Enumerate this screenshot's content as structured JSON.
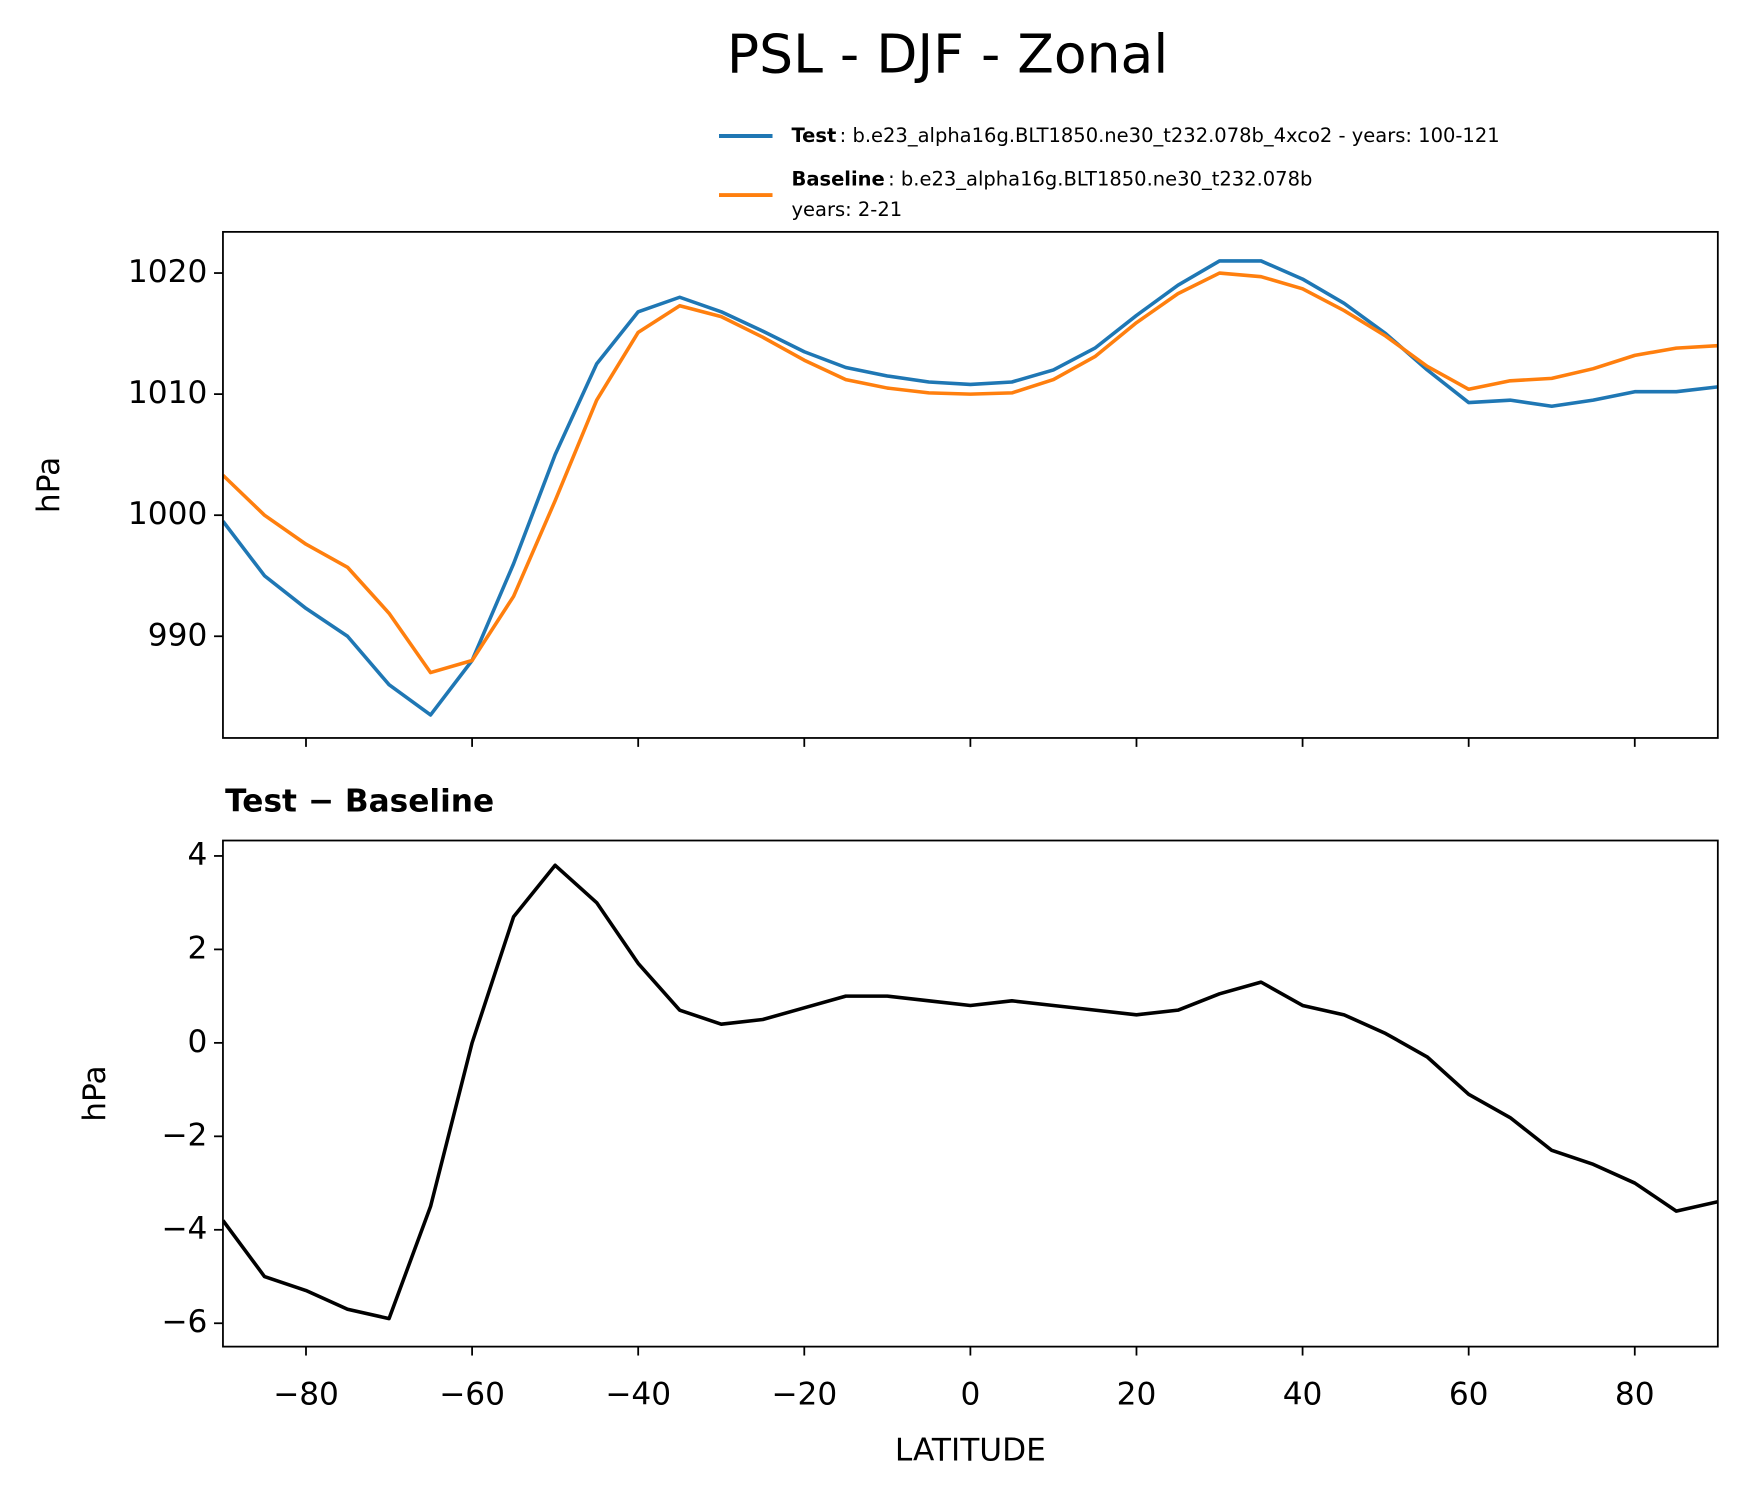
{
  "chart_data": [
    {
      "type": "line",
      "title": "PSL - DJF - Zonal",
      "ylabel": "hPa",
      "x": [
        -90,
        -85,
        -80,
        -75,
        -70,
        -65,
        -60,
        -55,
        -50,
        -45,
        -40,
        -35,
        -30,
        -25,
        -20,
        -15,
        -10,
        -5,
        0,
        5,
        10,
        15,
        20,
        25,
        30,
        35,
        40,
        45,
        50,
        55,
        60,
        65,
        70,
        75,
        80,
        85,
        90
      ],
      "series": [
        {
          "name": "Test",
          "description": [
            ": b.e23_alpha16g.BLT1850.ne30_t232.078b_4xco2 - years: 100-121"
          ],
          "color": "#1f77b4",
          "values": [
            999.5,
            995.0,
            992.3,
            990.0,
            986.0,
            983.5,
            988.0,
            996.0,
            1005.0,
            1012.5,
            1016.8,
            1018.0,
            1016.8,
            1015.2,
            1013.5,
            1012.2,
            1011.5,
            1011.0,
            1010.8,
            1011.0,
            1012.0,
            1013.8,
            1016.5,
            1019.0,
            1021.0,
            1021.0,
            1019.5,
            1017.5,
            1015.0,
            1012.0,
            1009.3,
            1009.5,
            1009.0,
            1009.5,
            1010.2,
            1010.2,
            1010.6
          ]
        },
        {
          "name": "Baseline",
          "description": [
            ": b.e23_alpha16g.BLT1850.ne30_t232.078b",
            "years: 2-21"
          ],
          "color": "#ff7f0e",
          "values": [
            1003.3,
            1000.0,
            997.6,
            995.7,
            991.9,
            987.0,
            988.0,
            993.3,
            1001.2,
            1009.5,
            1015.1,
            1017.3,
            1016.4,
            1014.7,
            1012.8,
            1011.2,
            1010.5,
            1010.1,
            1010.0,
            1010.1,
            1011.2,
            1013.1,
            1015.9,
            1018.3,
            1020.0,
            1019.7,
            1018.7,
            1016.9,
            1014.8,
            1012.3,
            1010.4,
            1011.1,
            1011.3,
            1012.1,
            1013.2,
            1013.8,
            1014.0
          ]
        }
      ],
      "xlim": [
        -90,
        90
      ],
      "xticks": [
        -80,
        -60,
        -40,
        -20,
        0,
        20,
        40,
        60,
        80
      ],
      "ylim": [
        981.6,
        1023.4
      ],
      "yticks": [
        990,
        1000,
        1010,
        1020
      ]
    },
    {
      "type": "line",
      "title": "Test − Baseline",
      "xlabel": "LATITUDE",
      "ylabel": "hPa",
      "x": [
        -90,
        -85,
        -80,
        -75,
        -70,
        -65,
        -60,
        -55,
        -50,
        -45,
        -40,
        -35,
        -30,
        -25,
        -20,
        -15,
        -10,
        -5,
        0,
        5,
        10,
        15,
        20,
        25,
        30,
        35,
        40,
        45,
        50,
        55,
        60,
        65,
        70,
        75,
        80,
        85,
        90
      ],
      "series": [
        {
          "color": "#000000",
          "values": [
            -3.8,
            -5.0,
            -5.3,
            -5.7,
            -5.9,
            -3.5,
            0.0,
            2.7,
            3.8,
            3.0,
            1.7,
            0.7,
            0.4,
            0.5,
            0.75,
            1.0,
            1.0,
            0.9,
            0.8,
            0.9,
            0.8,
            0.7,
            0.6,
            0.7,
            1.05,
            1.3,
            0.8,
            0.6,
            0.2,
            -0.3,
            -1.1,
            -1.6,
            -2.3,
            -2.6,
            -3.0,
            -3.6,
            -3.4
          ]
        }
      ],
      "xlim": [
        -90,
        90
      ],
      "xticks": [
        {
          "value": -80,
          "label": "−80"
        },
        {
          "value": -60,
          "label": "−60"
        },
        {
          "value": -40,
          "label": "−40"
        },
        {
          "value": -20,
          "label": "−20"
        },
        0,
        20,
        40,
        60,
        80
      ],
      "ylim": [
        -6.5,
        4.33
      ],
      "yticks": [
        {
          "value": -6,
          "label": "−6"
        },
        {
          "value": -4,
          "label": "−4"
        },
        {
          "value": -2,
          "label": "−2"
        },
        0,
        2,
        4
      ]
    }
  ]
}
